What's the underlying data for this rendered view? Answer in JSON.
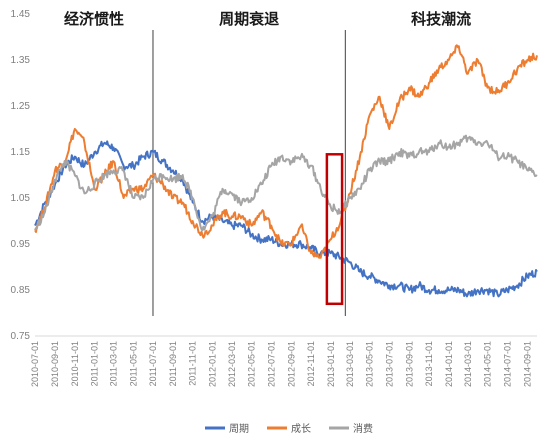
{
  "chart_data": {
    "type": "line",
    "title": "",
    "xlabel": "",
    "ylabel": "",
    "ylim": [
      0.75,
      1.45
    ],
    "yticks": [
      "0.75",
      "0.85",
      "0.95",
      "1.05",
      "1.15",
      "1.25",
      "1.35",
      "1.45"
    ],
    "xticks": [
      "2010-07-01",
      "2010-09-01",
      "2010-11-01",
      "2011-01-01",
      "2011-03-01",
      "2011-05-01",
      "2011-07-01",
      "2011-09-01",
      "2011-11-01",
      "2012-01-01",
      "2012-03-01",
      "2012-05-01",
      "2012-07-01",
      "2012-09-01",
      "2012-11-01",
      "2013-01-01",
      "2013-03-01",
      "2013-05-01",
      "2013-07-01",
      "2013-09-01",
      "2013-11-01",
      "2014-01-01",
      "2014-03-01",
      "2014-05-01",
      "2014-07-01",
      "2014-09-01"
    ],
    "grid": false,
    "legend_position": "bottom-center",
    "phases": [
      {
        "label": "经济惯性",
        "start": "2010-07-01",
        "end": "2011-07-01"
      },
      {
        "label": "周期衰退",
        "start": "2011-07-01",
        "end": "2013-02-15"
      },
      {
        "label": "科技潮流",
        "start": "2013-02-15",
        "end": "2014-10-01"
      }
    ],
    "dividers": [
      "2011-07-01",
      "2013-02-15"
    ],
    "highlight": {
      "x_start": "2012-12-20",
      "x_end": "2013-02-05",
      "y_min": 0.82,
      "y_max": 1.145,
      "color": "#c00000"
    },
    "x": [
      "2010-07-01",
      "2010-08-01",
      "2010-09-01",
      "2010-10-01",
      "2010-11-01",
      "2010-12-01",
      "2011-01-01",
      "2011-02-01",
      "2011-03-01",
      "2011-04-01",
      "2011-05-01",
      "2011-06-01",
      "2011-07-01",
      "2011-08-01",
      "2011-09-01",
      "2011-10-01",
      "2011-11-01",
      "2011-12-01",
      "2012-01-01",
      "2012-02-01",
      "2012-03-01",
      "2012-04-01",
      "2012-05-01",
      "2012-06-01",
      "2012-07-01",
      "2012-08-01",
      "2012-09-01",
      "2012-10-01",
      "2012-11-01",
      "2012-12-01",
      "2013-01-01",
      "2013-02-01",
      "2013-03-01",
      "2013-04-01",
      "2013-05-01",
      "2013-06-01",
      "2013-07-01",
      "2013-08-01",
      "2013-09-01",
      "2013-10-01",
      "2013-11-01",
      "2013-12-01",
      "2014-01-01",
      "2014-02-01",
      "2014-03-01",
      "2014-04-01",
      "2014-05-01",
      "2014-06-01",
      "2014-07-01",
      "2014-08-01",
      "2014-09-01",
      "2014-10-01"
    ],
    "series": [
      {
        "name": "周期",
        "color": "#4472c4",
        "values": [
          0.99,
          1.04,
          1.08,
          1.12,
          1.14,
          1.12,
          1.15,
          1.17,
          1.16,
          1.12,
          1.12,
          1.14,
          1.15,
          1.13,
          1.11,
          1.09,
          1.04,
          1.0,
          1.01,
          1.0,
          0.99,
          0.99,
          0.97,
          0.96,
          0.96,
          0.95,
          0.95,
          0.95,
          0.94,
          0.93,
          0.93,
          0.92,
          0.91,
          0.89,
          0.88,
          0.87,
          0.86,
          0.86,
          0.85,
          0.86,
          0.85,
          0.85,
          0.85,
          0.85,
          0.84,
          0.85,
          0.85,
          0.84,
          0.85,
          0.86,
          0.88,
          0.89
        ]
      },
      {
        "name": "成长",
        "color": "#ed7d31",
        "values": [
          0.98,
          1.03,
          1.11,
          1.13,
          1.2,
          1.17,
          1.07,
          1.1,
          1.13,
          1.05,
          1.07,
          1.07,
          1.1,
          1.08,
          1.05,
          1.04,
          1.0,
          0.97,
          0.99,
          1.02,
          1.01,
          1.01,
          0.99,
          1.02,
          0.99,
          0.95,
          0.95,
          0.99,
          0.93,
          0.92,
          0.96,
          1.0,
          1.06,
          1.14,
          1.23,
          1.27,
          1.2,
          1.26,
          1.29,
          1.27,
          1.3,
          1.33,
          1.35,
          1.38,
          1.32,
          1.35,
          1.29,
          1.28,
          1.3,
          1.33,
          1.35,
          1.36
        ]
      },
      {
        "name": "消费",
        "color": "#a5a5a5",
        "values": [
          0.98,
          1.02,
          1.09,
          1.13,
          1.1,
          1.06,
          1.08,
          1.1,
          1.11,
          1.11,
          1.05,
          1.05,
          1.09,
          1.1,
          1.09,
          1.1,
          1.05,
          0.98,
          1.01,
          1.07,
          1.06,
          1.04,
          1.05,
          1.08,
          1.12,
          1.14,
          1.13,
          1.14,
          1.12,
          1.07,
          1.03,
          1.02,
          1.05,
          1.07,
          1.11,
          1.13,
          1.13,
          1.15,
          1.14,
          1.15,
          1.15,
          1.17,
          1.16,
          1.17,
          1.18,
          1.17,
          1.17,
          1.14,
          1.14,
          1.13,
          1.11,
          1.1
        ]
      }
    ]
  }
}
